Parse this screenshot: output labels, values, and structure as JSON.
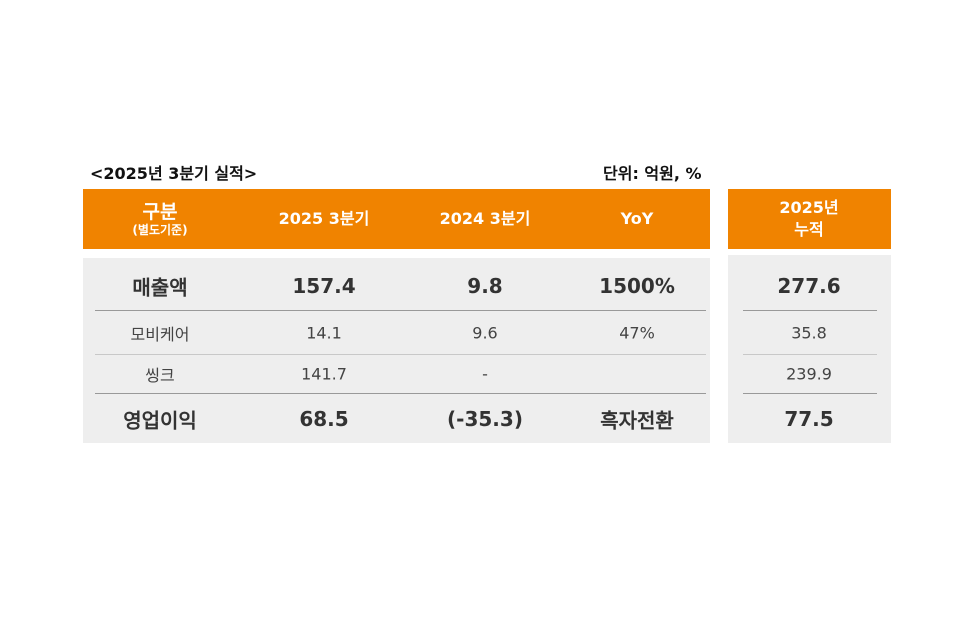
{
  "title": "<2025년 3분기 실적>",
  "unit": "단위: 억원, %",
  "colors": {
    "header": "#f08300",
    "body": "#eeeeee"
  },
  "header": {
    "category": "구분",
    "category_sub": "(별도기준)",
    "col1": "2025 3분기",
    "col2": "2024 3분기",
    "col3": "YoY",
    "cumulative_line1": "2025년",
    "cumulative_line2": "누적"
  },
  "rows": [
    {
      "label": "매출액",
      "q3_2025": "157.4",
      "q3_2024": "9.8",
      "yoy": "1500%",
      "cumulative": "277.6"
    },
    {
      "label": "모비케어",
      "q3_2025": "14.1",
      "q3_2024": "9.6",
      "yoy": "47%",
      "cumulative": "35.8"
    },
    {
      "label": "씽크",
      "q3_2025": "141.7",
      "q3_2024": "-",
      "yoy": "",
      "cumulative": "239.9"
    },
    {
      "label": "영업이익",
      "q3_2025": "68.5",
      "q3_2024": "(-35.3)",
      "yoy": "흑자전환",
      "cumulative": "77.5"
    }
  ]
}
